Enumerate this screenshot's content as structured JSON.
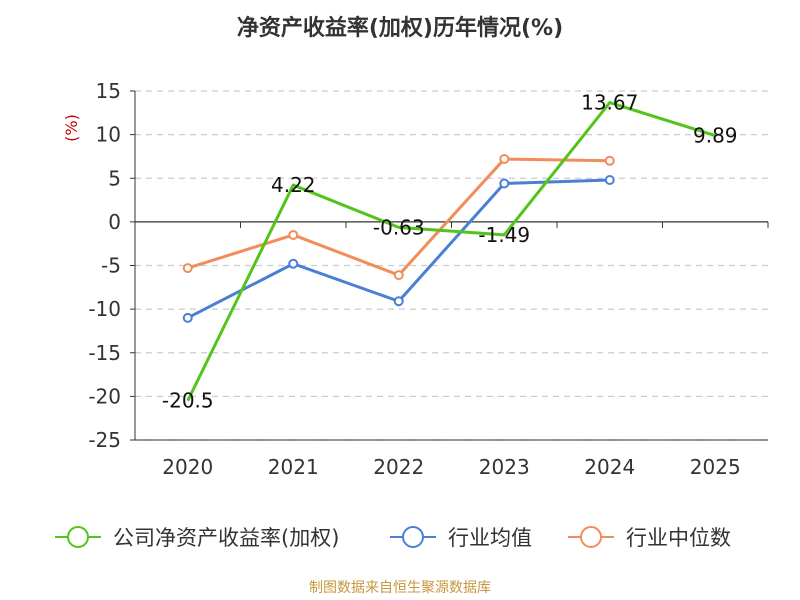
{
  "chart_data": {
    "type": "line",
    "title": "净资产收益率(加权)历年情况(%)",
    "ylabel": "(%)",
    "xlabel": "",
    "categories": [
      "2020",
      "2021",
      "2022",
      "2023",
      "2024",
      "2025"
    ],
    "ylim": [
      -25,
      15
    ],
    "yticks": [
      15,
      10,
      5,
      0,
      -5,
      -10,
      -15,
      -20,
      -25
    ],
    "grid": true,
    "legend_position": "bottom",
    "series": [
      {
        "name": "公司净资产收益率(加权)",
        "color": "#52c41a",
        "values": [
          -20.5,
          4.22,
          -0.63,
          -1.49,
          13.67,
          9.89
        ],
        "data_labels": [
          "-20.5",
          "4.22",
          "-0.63",
          "-1.49",
          "13.67",
          "9.89"
        ],
        "markers": false
      },
      {
        "name": "行业均值",
        "color": "#4a7fd6",
        "values": [
          -11.0,
          -4.8,
          -9.1,
          4.4,
          4.8,
          null
        ],
        "markers": true
      },
      {
        "name": "行业中位数",
        "color": "#f28c5a",
        "values": [
          -5.3,
          -1.5,
          -6.1,
          7.2,
          7.0,
          null
        ],
        "markers": true
      }
    ]
  },
  "footer": {
    "source": "制图数据来自恒生聚源数据库"
  }
}
